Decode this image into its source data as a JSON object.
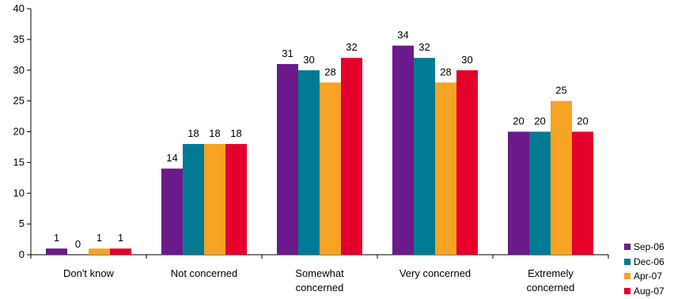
{
  "chart_data": {
    "type": "bar",
    "categories": [
      "Don't know",
      "Not concerned",
      "Somewhat concerned",
      "Very concerned",
      "Extremely concerned"
    ],
    "category_lines": [
      [
        "Don't know"
      ],
      [
        "Not concerned"
      ],
      [
        "Somewhat",
        "concerned"
      ],
      [
        "Very concerned"
      ],
      [
        "Extremely",
        "concerned"
      ]
    ],
    "series": [
      {
        "name": "Sep-06",
        "color": "#6a1a8a",
        "values": [
          1,
          14,
          31,
          34,
          20
        ]
      },
      {
        "name": "Dec-06",
        "color": "#007b93",
        "values": [
          0,
          18,
          30,
          32,
          20
        ]
      },
      {
        "name": "Apr-07",
        "color": "#f7a323",
        "values": [
          1,
          18,
          28,
          28,
          25
        ]
      },
      {
        "name": "Aug-07",
        "color": "#e4002b",
        "values": [
          1,
          18,
          32,
          30,
          20
        ]
      }
    ],
    "ylim": [
      0,
      40
    ],
    "yticks": [
      0,
      5,
      10,
      15,
      20,
      25,
      30,
      35,
      40
    ],
    "title": "",
    "xlabel": "",
    "ylabel": "",
    "grid": false,
    "legend_position": "bottom-right"
  }
}
